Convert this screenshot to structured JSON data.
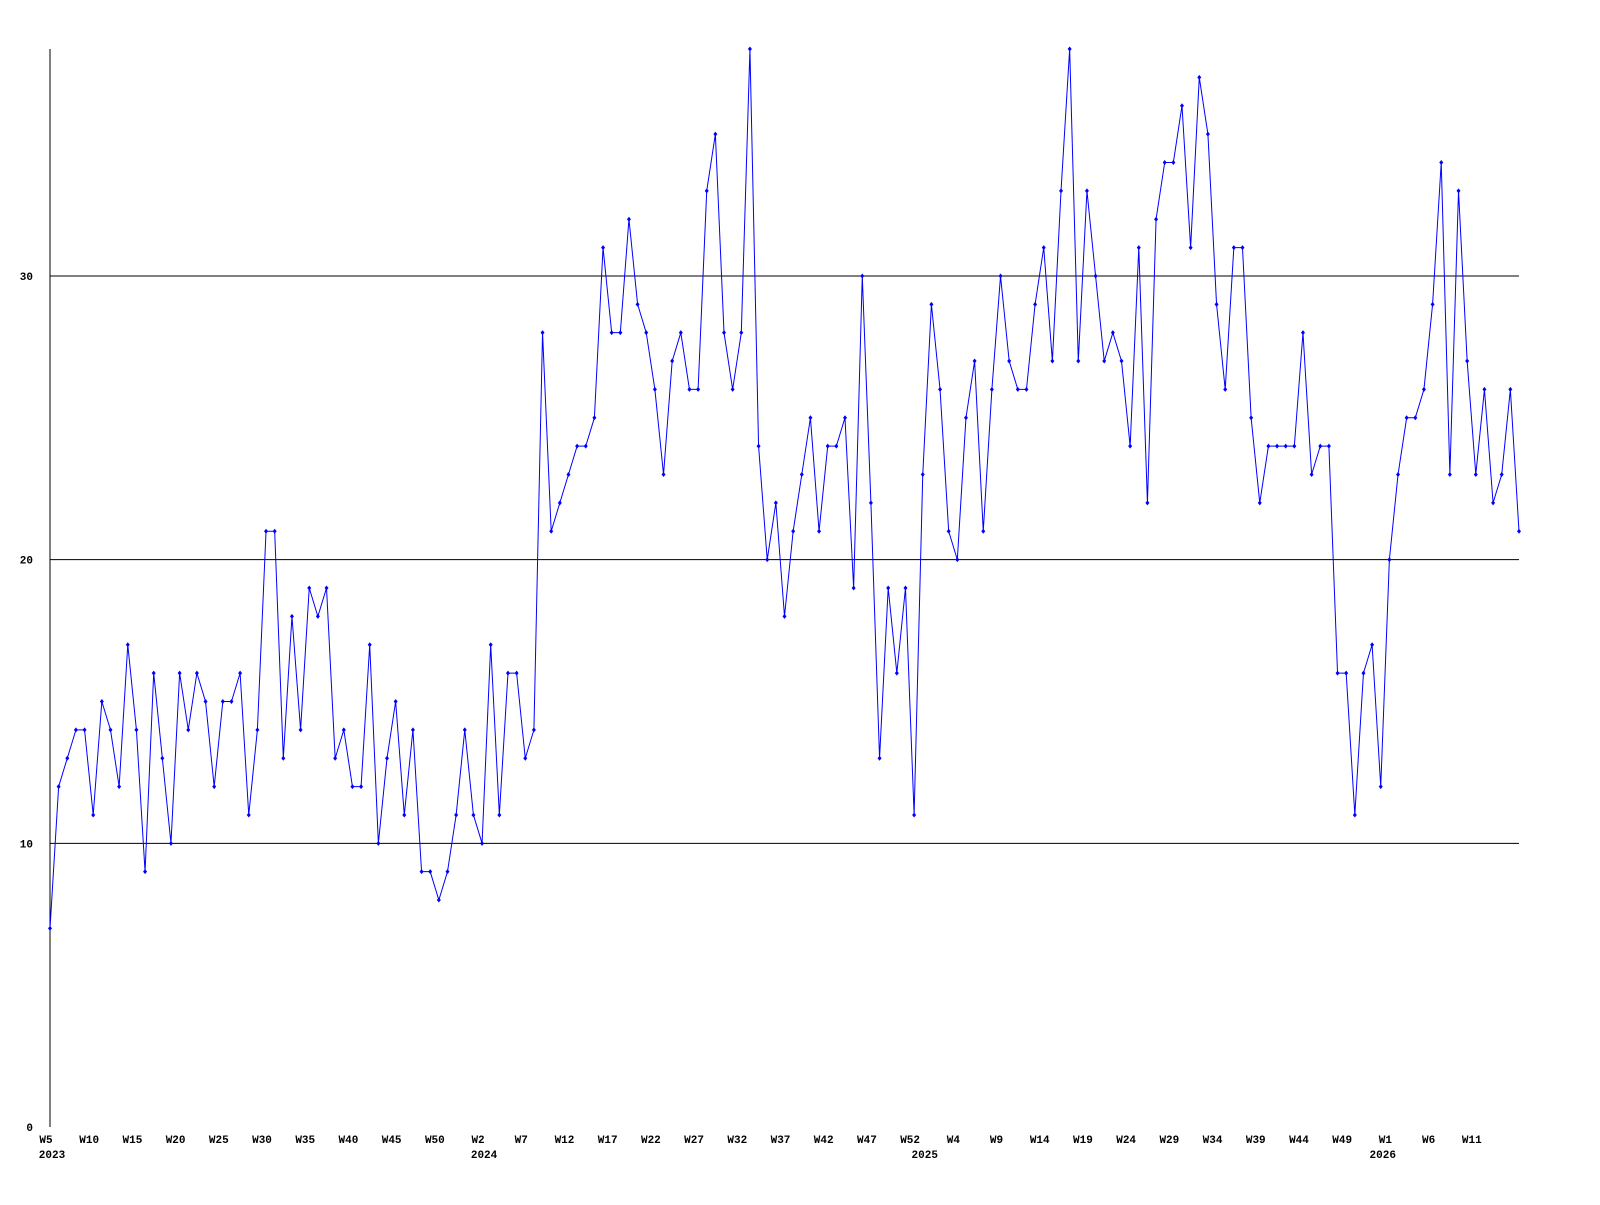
{
  "chart_data": {
    "type": "line",
    "categories": [
      "W5",
      null,
      null,
      null,
      null,
      "W10",
      null,
      null,
      null,
      null,
      "W15",
      null,
      null,
      null,
      null,
      "W20",
      null,
      null,
      null,
      null,
      "W25",
      null,
      null,
      null,
      null,
      "W30",
      null,
      null,
      null,
      null,
      "W35",
      null,
      null,
      null,
      null,
      "W40",
      null,
      null,
      null,
      null,
      "W45",
      null,
      null,
      null,
      null,
      "W50",
      null,
      null,
      null,
      null,
      "W2",
      null,
      null,
      null,
      null,
      "W7",
      null,
      null,
      null,
      null,
      "W12",
      null,
      null,
      null,
      null,
      "W17",
      null,
      null,
      null,
      null,
      "W22",
      null,
      null,
      null,
      null,
      "W27",
      null,
      null,
      null,
      null,
      "W32",
      null,
      null,
      null,
      null,
      "W37",
      null,
      null,
      null,
      null,
      "W42",
      null,
      null,
      null,
      null,
      "W47",
      null,
      null,
      null,
      null,
      "W52",
      null,
      null,
      null,
      null,
      "W4",
      null,
      null,
      null,
      null,
      "W9",
      null,
      null,
      null,
      null,
      "W14",
      null,
      null,
      null,
      null,
      "W19",
      null,
      null,
      null,
      null,
      "W24",
      null,
      null,
      null,
      null,
      "W29",
      null,
      null,
      null,
      null,
      "W34",
      null,
      null,
      null,
      null,
      "W39",
      null,
      null,
      null,
      null,
      "W44",
      null,
      null,
      null,
      null,
      "W49",
      null,
      null,
      null,
      null,
      "W1",
      null,
      null,
      null,
      null,
      "W6",
      null,
      null,
      null,
      null,
      "W11",
      null,
      null,
      null,
      null,
      null
    ],
    "years": [
      "2023",
      null,
      null,
      null,
      null,
      null,
      null,
      null,
      null,
      null,
      null,
      null,
      null,
      null,
      null,
      null,
      null,
      null,
      null,
      null,
      null,
      null,
      null,
      null,
      null,
      null,
      null,
      null,
      null,
      null,
      null,
      null,
      null,
      null,
      null,
      null,
      null,
      null,
      null,
      null,
      null,
      null,
      null,
      null,
      null,
      null,
      null,
      null,
      null,
      null,
      "2024",
      null,
      null,
      null,
      null,
      null,
      null,
      null,
      null,
      null,
      null,
      null,
      null,
      null,
      null,
      null,
      null,
      null,
      null,
      null,
      null,
      null,
      null,
      null,
      null,
      null,
      null,
      null,
      null,
      null,
      null,
      null,
      null,
      null,
      null,
      null,
      null,
      null,
      null,
      null,
      null,
      null,
      null,
      null,
      null,
      null,
      null,
      null,
      null,
      null,
      null,
      "2025",
      null,
      null,
      null,
      null,
      null,
      null,
      null,
      null,
      null,
      null,
      null,
      null,
      null,
      null,
      null,
      null,
      null,
      null,
      null,
      null,
      null,
      null,
      null,
      null,
      null,
      null,
      null,
      null,
      null,
      null,
      null,
      null,
      null,
      null,
      null,
      null,
      null,
      null,
      null,
      null,
      null,
      null,
      null,
      null,
      null,
      null,
      null,
      null,
      null,
      null,
      null,
      null,
      "2026",
      null,
      null,
      null,
      null,
      null,
      null,
      null,
      null,
      null,
      null,
      null,
      null,
      null,
      null,
      null
    ],
    "series": [
      {
        "color": "#0000ff",
        "values": [
          7,
          12,
          13,
          14,
          14,
          11,
          15,
          14,
          12,
          17,
          14,
          9,
          16,
          13,
          10,
          16,
          14,
          16,
          15,
          12,
          15,
          15,
          16,
          11,
          14,
          21,
          21,
          13,
          18,
          14,
          19,
          18,
          19,
          13,
          14,
          12,
          12,
          17,
          10,
          13,
          15,
          11,
          14,
          9,
          9,
          8,
          9,
          11,
          14,
          11,
          10,
          17,
          11,
          16,
          16,
          13,
          14,
          28,
          21,
          22,
          23,
          24,
          24,
          25,
          31,
          28,
          28,
          32,
          29,
          28,
          26,
          23,
          27,
          28,
          26,
          26,
          33,
          35,
          28,
          26,
          28,
          38,
          24,
          20,
          22,
          18,
          21,
          23,
          25,
          21,
          24,
          24,
          25,
          19,
          30,
          22,
          13,
          19,
          16,
          19,
          11,
          23,
          29,
          26,
          21,
          20,
          25,
          27,
          21,
          26,
          30,
          27,
          26,
          26,
          29,
          31,
          27,
          33,
          38,
          27,
          33,
          30,
          27,
          28,
          27,
          24,
          31,
          22,
          32,
          34,
          34,
          36,
          31,
          37,
          35,
          29,
          26,
          31,
          31,
          25,
          22,
          24,
          24,
          24,
          24,
          28,
          23,
          24,
          24,
          16,
          16,
          11,
          16,
          17,
          12,
          20,
          23,
          25,
          25,
          26,
          29,
          34,
          23,
          33,
          27,
          23,
          26,
          22,
          23,
          26,
          21
        ]
      }
    ],
    "ylim": [
      0,
      38
    ],
    "yticks": [
      0,
      10,
      20,
      30
    ],
    "grid": true
  }
}
